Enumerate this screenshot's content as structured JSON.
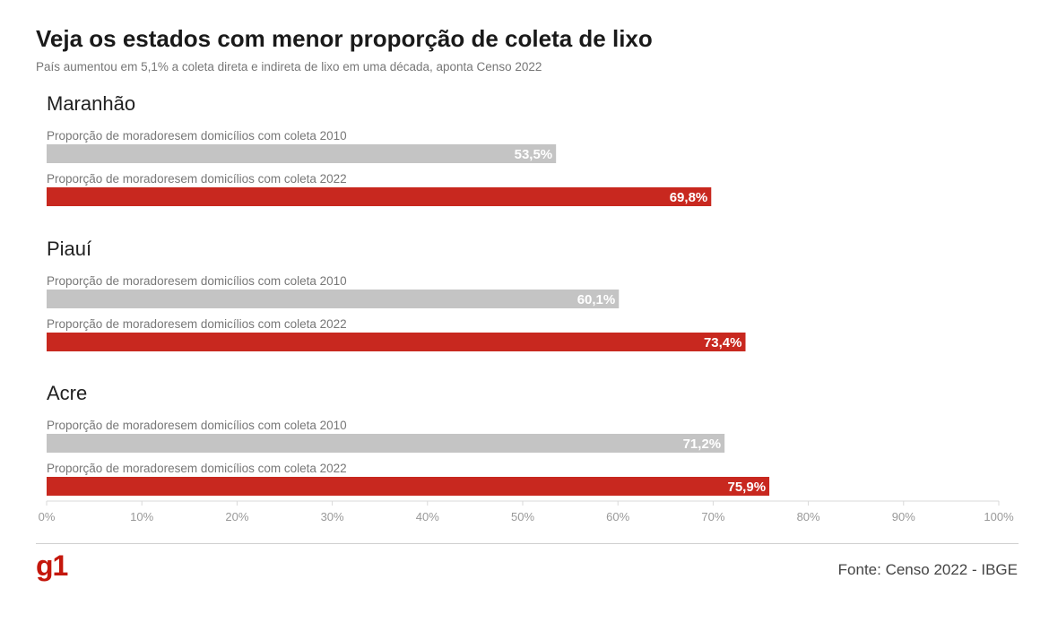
{
  "header": {
    "title": "Veja os estados com menor proporção de coleta de lixo",
    "subtitle": "País aumentou em 5,1% a coleta direta e indireta de lixo em uma década, aponta Censo 2022"
  },
  "footer": {
    "logo": "g1",
    "source": "Fonte: Censo 2022 - IBGE"
  },
  "chart_data": {
    "type": "bar",
    "orientation": "horizontal",
    "title": "Veja os estados com menor proporção de coleta de lixo",
    "subtitle": "País aumentou em 5,1% a coleta direta e indireta de lixo em uma década, aponta Censo 2022",
    "xlim": [
      0,
      100
    ],
    "x_ticks": [
      "0%",
      "10%",
      "20%",
      "30%",
      "40%",
      "50%",
      "60%",
      "70%",
      "80%",
      "90%",
      "100%"
    ],
    "series_colors": {
      "2010": "#c4c4c4",
      "2022": "#c8281f"
    },
    "groups": [
      {
        "name": "Maranhão",
        "bars": [
          {
            "label": "Proporção de moradoresem domicílios com coleta 2010",
            "year": "2010",
            "value": 53.5,
            "value_label": "53,5%"
          },
          {
            "label": "Proporção de moradoresem domicílios com coleta 2022",
            "year": "2022",
            "value": 69.8,
            "value_label": "69,8%"
          }
        ]
      },
      {
        "name": "Piauí",
        "bars": [
          {
            "label": "Proporção de moradoresem domicílios com coleta 2010",
            "year": "2010",
            "value": 60.1,
            "value_label": "60,1%"
          },
          {
            "label": "Proporção de moradoresem domicílios com coleta 2022",
            "year": "2022",
            "value": 73.4,
            "value_label": "73,4%"
          }
        ]
      },
      {
        "name": "Acre",
        "bars": [
          {
            "label": "Proporção de moradoresem domicílios com coleta 2010",
            "year": "2010",
            "value": 71.2,
            "value_label": "71,2%"
          },
          {
            "label": "Proporção de moradoresem domicílios com coleta 2022",
            "year": "2022",
            "value": 75.9,
            "value_label": "75,9%"
          }
        ]
      }
    ]
  }
}
